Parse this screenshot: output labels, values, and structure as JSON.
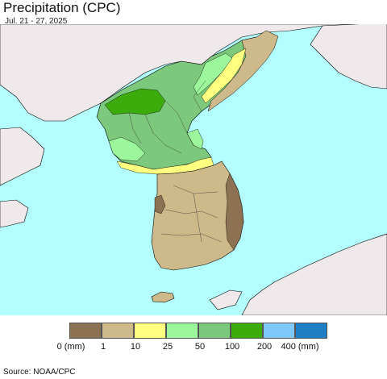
{
  "header": {
    "title": "Precipitation (CPC)",
    "subtitle": "Jul. 21 - 27, 2025"
  },
  "map": {
    "region": "Korean Peninsula",
    "colors": {
      "ocean": "#b3ffff",
      "foreign_land": "#efe9ec",
      "border": "#000000"
    }
  },
  "legend": {
    "bins": [
      {
        "color": "#8c7152"
      },
      {
        "color": "#cdb98a"
      },
      {
        "color": "#ffff80"
      },
      {
        "color": "#9cf79c"
      },
      {
        "color": "#7cc87c"
      },
      {
        "color": "#3cab0c"
      },
      {
        "color": "#7fc8fa"
      },
      {
        "color": "#1e7fc4"
      }
    ],
    "labels": [
      "0 (mm)",
      "1",
      "10",
      "25",
      "50",
      "100",
      "200",
      "400 (mm)"
    ]
  },
  "footer": {
    "source": "Source: NOAA/CPC"
  }
}
